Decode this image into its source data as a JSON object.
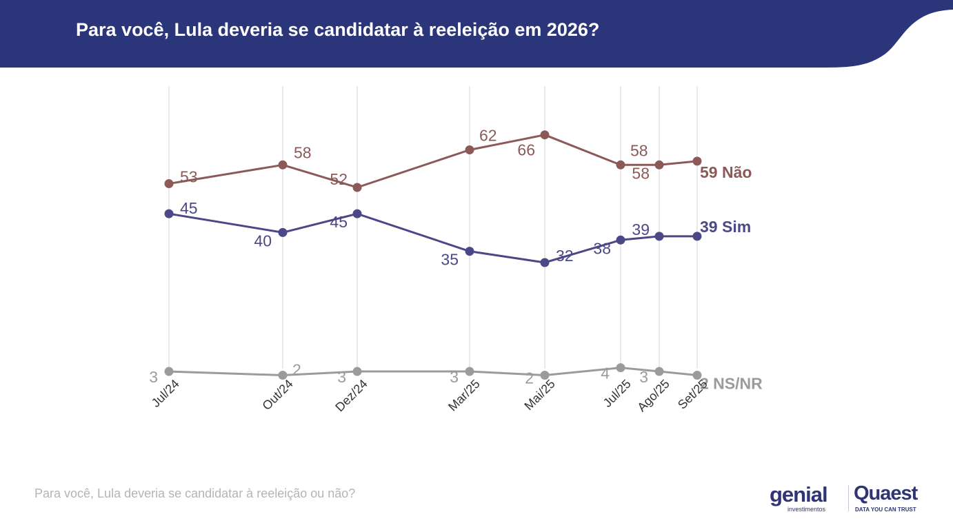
{
  "header": {
    "title": "Para você, Lula deveria se candidatar à reeleição em 2026?",
    "color": "#2b357a"
  },
  "footnote": "Para você, Lula deveria se candidatar à reeleição ou não?",
  "logos": {
    "genial": "genial",
    "genial_sub": "investimentos",
    "quaest": "Quaest",
    "quaest_tagline": "DATA YOU CAN TRUST"
  },
  "chart_data": {
    "type": "line",
    "title": "",
    "xlabel": "",
    "ylabel": "",
    "grid": "vertical",
    "legend": "end-labels",
    "categories": [
      "Jul/24",
      "Out/24",
      "Dez/24",
      "Mar/25",
      "Mai/25",
      "Jul/25",
      "Ago/25",
      "Set/25"
    ],
    "series": [
      {
        "name": "Não",
        "end_label": "59 Não",
        "color": "#8b5a58",
        "values": [
          53,
          58,
          52,
          62,
          66,
          58,
          58,
          59
        ]
      },
      {
        "name": "Sim",
        "end_label": "39 Sim",
        "color": "#4c4888",
        "values": [
          45,
          40,
          45,
          35,
          32,
          38,
          39,
          39
        ]
      },
      {
        "name": "NS/NR",
        "end_label": "2 NS/NR",
        "color": "#9b9b9b",
        "values": [
          3,
          2,
          3,
          3,
          2,
          4,
          3,
          2
        ]
      }
    ]
  }
}
